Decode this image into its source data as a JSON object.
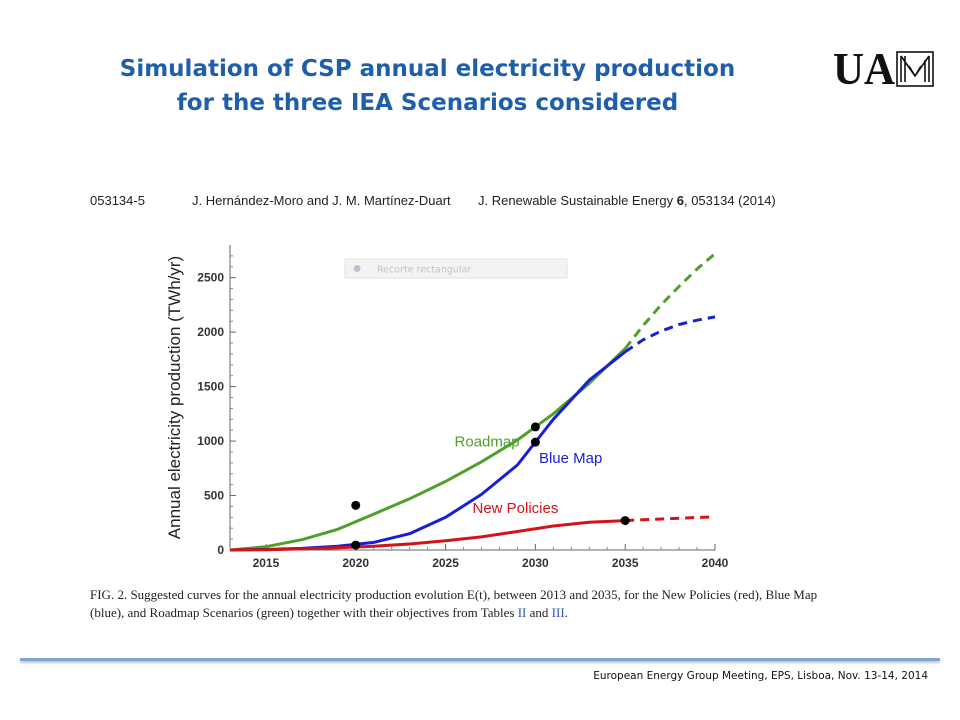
{
  "slide": {
    "title_line1": "Simulation of CSP annual electricity production",
    "title_line2": "for the three IEA Scenarios considered",
    "logo_text": "UAM",
    "footer": "European Energy Group Meeting, EPS, Lisboa, Nov. 13-14, 2014",
    "accent_color": "#1f5fa8"
  },
  "paper_header": {
    "article_id": "053134-5",
    "authors": "J. Hernández-Moro and J. M. Martínez-Duart",
    "journal_prefix": "J. Renewable Sustainable Energy ",
    "volume": "6",
    "journal_suffix": ", 053134 (2014)"
  },
  "overlay": {
    "label": "Recorte rectangular"
  },
  "caption": {
    "text": "FIG. 2. Suggested curves for the annual electricity production evolution E(t), between 2013 and 2035, for the New Policies (red), Blue Map (blue), and Roadmap Scenarios (green) together with their objectives from Tables ",
    "ref1": "II",
    "and": " and ",
    "ref2": "III",
    "end": "."
  },
  "chart_data": {
    "type": "line",
    "title": "",
    "xlabel": "",
    "ylabel": "Annual electricity production (TWh/yr)",
    "xlim": [
      2013,
      2040
    ],
    "ylim": [
      0,
      2800
    ],
    "x_ticks": [
      2015,
      2020,
      2025,
      2030,
      2035,
      2040
    ],
    "y_ticks": [
      0,
      500,
      1000,
      1500,
      2000,
      2500
    ],
    "grid": false,
    "solid_until": 2035,
    "series": [
      {
        "name": "Roadmap",
        "color": "#4fa02a",
        "label_at": {
          "x": 2025.5,
          "y": 950
        },
        "x": [
          2013,
          2015,
          2017,
          2019,
          2021,
          2023,
          2025,
          2027,
          2029,
          2031,
          2033,
          2035,
          2036,
          2037,
          2038,
          2039,
          2040
        ],
        "values": [
          0,
          30,
          95,
          190,
          330,
          470,
          630,
          810,
          1010,
          1250,
          1530,
          1850,
          2060,
          2250,
          2420,
          2580,
          2720
        ]
      },
      {
        "name": "Blue Map",
        "color": "#1a1fd6",
        "label_at": {
          "x": 2030.2,
          "y": 800
        },
        "x": [
          2013,
          2015,
          2017,
          2019,
          2021,
          2023,
          2025,
          2027,
          2029,
          2031,
          2033,
          2035,
          2036,
          2037,
          2038,
          2039,
          2040
        ],
        "values": [
          0,
          5,
          15,
          35,
          70,
          150,
          300,
          510,
          780,
          1200,
          1560,
          1820,
          1930,
          2010,
          2070,
          2110,
          2140
        ]
      },
      {
        "name": "New Policies",
        "color": "#d0141a",
        "label_at": {
          "x": 2026.5,
          "y": 340
        },
        "x": [
          2013,
          2015,
          2017,
          2019,
          2021,
          2023,
          2025,
          2027,
          2029,
          2031,
          2033,
          2035,
          2036,
          2037,
          2038,
          2039,
          2040
        ],
        "values": [
          0,
          3,
          10,
          20,
          35,
          55,
          85,
          120,
          170,
          220,
          255,
          270,
          278,
          285,
          292,
          298,
          303
        ]
      }
    ],
    "objectives": [
      {
        "x": 2020,
        "y": 410
      },
      {
        "x": 2020,
        "y": 45
      },
      {
        "x": 2030,
        "y": 1130
      },
      {
        "x": 2030,
        "y": 990
      },
      {
        "x": 2035,
        "y": 270
      }
    ]
  }
}
